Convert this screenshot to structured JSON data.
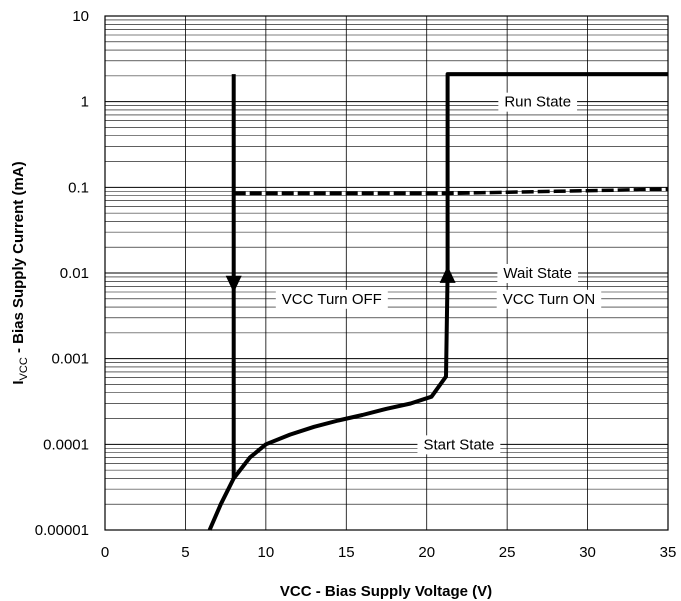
{
  "chart_data": {
    "type": "line",
    "xlabel": "VCC - Bias Supply Voltage (V)",
    "ylabel_prefix": "I",
    "ylabel_sub": "VCC",
    "ylabel_suffix": " - Bias Supply Current (mA)",
    "xlim": [
      0,
      35
    ],
    "ylim": [
      1e-05,
      10
    ],
    "yscale": "log",
    "grid": true,
    "x_ticks": [
      0,
      5,
      10,
      15,
      20,
      25,
      30,
      35
    ],
    "x_tick_labels": [
      "0",
      "5",
      "10",
      "15",
      "20",
      "25",
      "30",
      "35"
    ],
    "y_ticks": [
      1e-05,
      0.0001,
      0.001,
      0.01,
      0.1,
      1,
      10
    ],
    "y_tick_labels": [
      "0.00001",
      "0.0001",
      "0.001",
      "0.01",
      "0.1",
      "1",
      "10"
    ],
    "series": [
      {
        "style": "solid",
        "x": [
          6.5,
          7.2,
          8.0,
          9.0,
          10.0,
          11.5,
          13.0,
          14.5,
          16.0,
          17.5,
          19.0,
          20.3,
          21.2,
          21.3,
          21.3,
          35
        ],
        "y": [
          1e-05,
          2e-05,
          4e-05,
          7e-05,
          0.0001,
          0.00013,
          0.00016,
          0.00019,
          0.00022,
          0.00026,
          0.0003,
          0.00036,
          0.00062,
          0.01,
          2.1,
          2.1
        ]
      },
      {
        "style": "solid",
        "x": [
          8.0,
          8.0
        ],
        "y": [
          2.1,
          4e-05
        ]
      },
      {
        "style": "dashed",
        "x": [
          8.0,
          15,
          21.3,
          28,
          35
        ],
        "y": [
          0.085,
          0.085,
          0.085,
          0.09,
          0.095
        ]
      }
    ],
    "arrows": [
      {
        "x": 8.0,
        "y": 0.0075,
        "direction": "down"
      },
      {
        "x": 21.3,
        "y": 0.0095,
        "direction": "up"
      }
    ],
    "annotations": [
      {
        "text": "Run State",
        "x": 26.9,
        "y": 1.0
      },
      {
        "text": "Wait State",
        "x": 26.9,
        "y": 0.01
      },
      {
        "text": "VCC Turn  OFF",
        "x": 14.1,
        "y": 0.005
      },
      {
        "text": "VCC Turn  ON",
        "x": 27.6,
        "y": 0.005
      },
      {
        "text": "Start State",
        "x": 22.0,
        "y": 0.0001
      }
    ]
  }
}
